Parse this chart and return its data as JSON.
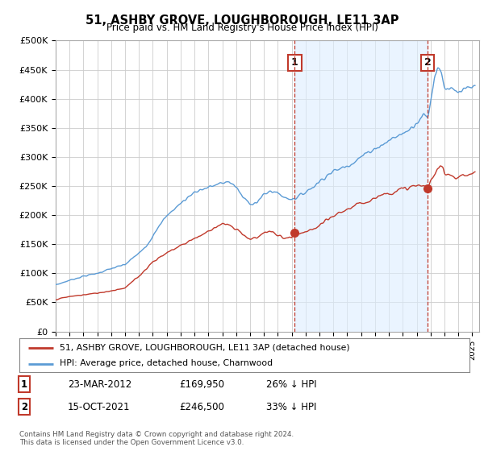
{
  "title": "51, ASHBY GROVE, LOUGHBOROUGH, LE11 3AP",
  "subtitle": "Price paid vs. HM Land Registry's House Price Index (HPI)",
  "ylim": [
    0,
    500000
  ],
  "yticks": [
    0,
    50000,
    100000,
    150000,
    200000,
    250000,
    300000,
    350000,
    400000,
    450000,
    500000
  ],
  "ytick_labels": [
    "£0",
    "£50K",
    "£100K",
    "£150K",
    "£200K",
    "£250K",
    "£300K",
    "£350K",
    "£400K",
    "£450K",
    "£500K"
  ],
  "hpi_color": "#5b9bd5",
  "hpi_fill_color": "#ddeeff",
  "sale_color": "#c0392b",
  "marker_color": "#c0392b",
  "dashed_color": "#c0392b",
  "background_color": "#ffffff",
  "grid_color": "#cccccc",
  "sale1_x": 2012.22,
  "sale1_y": 169950,
  "sale2_x": 2021.79,
  "sale2_y": 246500,
  "legend1_text": "51, ASHBY GROVE, LOUGHBOROUGH, LE11 3AP (detached house)",
  "legend2_text": "HPI: Average price, detached house, Charnwood",
  "table_row1": [
    "1",
    "23-MAR-2012",
    "£169,950",
    "26% ↓ HPI"
  ],
  "table_row2": [
    "2",
    "15-OCT-2021",
    "£246,500",
    "33% ↓ HPI"
  ],
  "footer": "Contains HM Land Registry data © Crown copyright and database right 2024.\nThis data is licensed under the Open Government Licence v3.0.",
  "xmin": 1995,
  "xmax": 2025.5
}
